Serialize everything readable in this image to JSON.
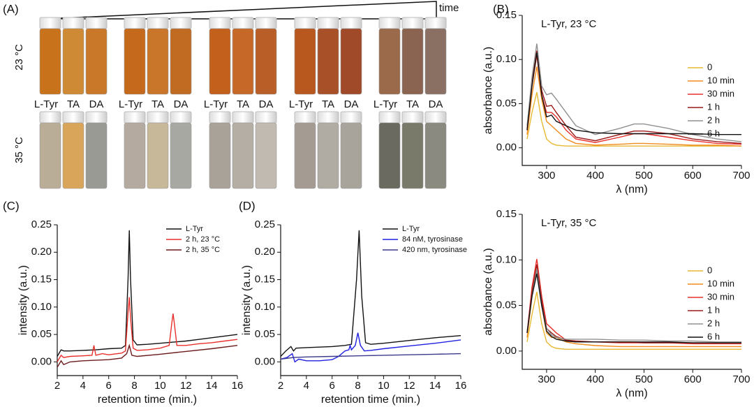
{
  "panels": [
    "(A)",
    "(B)",
    "(C)",
    "(D)"
  ],
  "photo": {
    "time_label": "time",
    "rows": [
      "23 °C",
      "35 °C"
    ],
    "vial_labels": [
      "L-Tyr",
      "TA",
      "DA"
    ]
  },
  "chart_data": [
    {
      "type": "line",
      "title": "L-Tyr, 23 °C",
      "x_label": "λ (nm)",
      "y_label": "absorbance (a.u.)",
      "xlim": [
        250,
        700
      ],
      "ylim": [
        -0.02,
        0.15
      ],
      "xticks": [
        300,
        400,
        500,
        600,
        700
      ],
      "yticks": [
        {
          "value": 0,
          "label": "0.00"
        },
        {
          "value": 0.05,
          "label": "0.05"
        },
        {
          "value": 0.1,
          "label": "0.10"
        },
        {
          "value": 0.15,
          "label": "0.15"
        }
      ],
      "legend": "upper right",
      "series": [
        {
          "name": "0",
          "color": "#e8b830",
          "x": [
            260,
            270,
            280,
            290,
            300,
            310,
            320,
            340,
            360,
            400,
            450,
            480,
            500,
            550,
            600,
            650,
            700
          ],
          "values": [
            0.01,
            0.04,
            0.063,
            0.03,
            0.01,
            0.005,
            0.003,
            0.002,
            0.002,
            0.002,
            0.002,
            0.002,
            0.002,
            0.002,
            0.002,
            0.002,
            0.002
          ]
        },
        {
          "name": "10 min",
          "color": "#f08a1c",
          "x": [
            260,
            270,
            280,
            290,
            300,
            310,
            320,
            340,
            360,
            400,
            450,
            480,
            500,
            550,
            600,
            650,
            700
          ],
          "values": [
            0.015,
            0.06,
            0.092,
            0.055,
            0.03,
            0.025,
            0.02,
            0.01,
            0.005,
            0.003,
            0.004,
            0.005,
            0.005,
            0.004,
            0.003,
            0.003,
            0.002
          ]
        },
        {
          "name": "30 min",
          "color": "#e8302c",
          "x": [
            260,
            270,
            280,
            290,
            300,
            310,
            320,
            340,
            360,
            400,
            450,
            480,
            500,
            550,
            600,
            650,
            700
          ],
          "values": [
            0.02,
            0.07,
            0.105,
            0.06,
            0.04,
            0.04,
            0.035,
            0.02,
            0.01,
            0.006,
            0.012,
            0.016,
            0.016,
            0.012,
            0.008,
            0.005,
            0.004
          ]
        },
        {
          "name": "1 h",
          "color": "#9b1a1a",
          "x": [
            260,
            270,
            280,
            290,
            300,
            310,
            320,
            340,
            360,
            400,
            450,
            480,
            500,
            550,
            600,
            650,
            700
          ],
          "values": [
            0.02,
            0.075,
            0.11,
            0.065,
            0.047,
            0.048,
            0.04,
            0.025,
            0.012,
            0.008,
            0.015,
            0.019,
            0.019,
            0.016,
            0.01,
            0.007,
            0.005
          ]
        },
        {
          "name": "2 h",
          "color": "#909090",
          "x": [
            260,
            270,
            280,
            290,
            300,
            310,
            320,
            340,
            360,
            400,
            450,
            480,
            500,
            550,
            600,
            650,
            700
          ],
          "values": [
            0.025,
            0.08,
            0.118,
            0.07,
            0.06,
            0.062,
            0.055,
            0.04,
            0.025,
            0.015,
            0.022,
            0.027,
            0.027,
            0.022,
            0.015,
            0.01,
            0.007
          ]
        },
        {
          "name": "6 h",
          "color": "#111111",
          "x": [
            260,
            270,
            280,
            290,
            300,
            310,
            320,
            340,
            360,
            400,
            450,
            480,
            500,
            550,
            600,
            650,
            700
          ],
          "values": [
            0.02,
            0.07,
            0.108,
            0.06,
            0.035,
            0.037,
            0.03,
            0.025,
            0.02,
            0.017,
            0.016,
            0.016,
            0.016,
            0.016,
            0.016,
            0.015,
            0.015
          ]
        }
      ]
    },
    {
      "type": "line",
      "title": "L-Tyr, 35 °C",
      "x_label": "λ (nm)",
      "y_label": "absorbance (a.u.)",
      "xlim": [
        250,
        700
      ],
      "ylim": [
        -0.02,
        0.15
      ],
      "xticks": [
        300,
        400,
        500,
        600,
        700
      ],
      "yticks": [
        {
          "value": 0,
          "label": "0.00"
        },
        {
          "value": 0.05,
          "label": "0.05"
        },
        {
          "value": 0.1,
          "label": "0.10"
        },
        {
          "value": 0.15,
          "label": "0.15"
        }
      ],
      "legend": "upper right",
      "series": [
        {
          "name": "0",
          "color": "#e8b830",
          "x": [
            260,
            270,
            280,
            290,
            300,
            310,
            320,
            340,
            360,
            400,
            450,
            480,
            500,
            550,
            600,
            650,
            700
          ],
          "values": [
            0.01,
            0.04,
            0.065,
            0.03,
            0.01,
            0.005,
            0.003,
            0.002,
            0.002,
            0.002,
            0.002,
            0.002,
            0.002,
            0.002,
            0.002,
            0.002,
            0.002
          ]
        },
        {
          "name": "10 min",
          "color": "#f08a1c",
          "x": [
            260,
            270,
            280,
            290,
            300,
            310,
            320,
            340,
            360,
            400,
            450,
            480,
            500,
            550,
            600,
            650,
            700
          ],
          "values": [
            0.015,
            0.06,
            0.09,
            0.05,
            0.02,
            0.015,
            0.015,
            0.01,
            0.008,
            0.006,
            0.005,
            0.005,
            0.005,
            0.005,
            0.005,
            0.005,
            0.005
          ]
        },
        {
          "name": "30 min",
          "color": "#e8302c",
          "x": [
            260,
            270,
            280,
            290,
            300,
            310,
            320,
            340,
            360,
            400,
            450,
            480,
            500,
            550,
            600,
            650,
            700
          ],
          "values": [
            0.02,
            0.07,
            0.101,
            0.06,
            0.03,
            0.025,
            0.02,
            0.012,
            0.01,
            0.01,
            0.009,
            0.009,
            0.009,
            0.009,
            0.008,
            0.008,
            0.008
          ]
        },
        {
          "name": "1 h",
          "color": "#9b1a1a",
          "x": [
            260,
            270,
            280,
            290,
            300,
            310,
            320,
            340,
            360,
            400,
            450,
            480,
            500,
            550,
            600,
            650,
            700
          ],
          "values": [
            0.02,
            0.065,
            0.095,
            0.055,
            0.025,
            0.02,
            0.016,
            0.012,
            0.011,
            0.01,
            0.01,
            0.01,
            0.009,
            0.009,
            0.009,
            0.009,
            0.009
          ]
        },
        {
          "name": "2 h",
          "color": "#909090",
          "x": [
            260,
            270,
            280,
            290,
            300,
            310,
            320,
            340,
            360,
            400,
            450,
            480,
            500,
            550,
            600,
            650,
            700
          ],
          "values": [
            0.02,
            0.06,
            0.09,
            0.05,
            0.025,
            0.018,
            0.015,
            0.013,
            0.013,
            0.013,
            0.012,
            0.012,
            0.012,
            0.011,
            0.011,
            0.01,
            0.01
          ]
        },
        {
          "name": "6 h",
          "color": "#111111",
          "x": [
            260,
            270,
            280,
            290,
            300,
            310,
            320,
            340,
            360,
            400,
            450,
            480,
            500,
            550,
            600,
            650,
            700
          ],
          "values": [
            0.02,
            0.06,
            0.085,
            0.05,
            0.022,
            0.016,
            0.013,
            0.011,
            0.01,
            0.01,
            0.01,
            0.01,
            0.01,
            0.01,
            0.009,
            0.009,
            0.009
          ]
        }
      ]
    },
    {
      "type": "line",
      "x_label": "retention time (min.)",
      "y_label": "intensity (a.u.)",
      "xlim": [
        2,
        16
      ],
      "ylim": [
        -0.025,
        0.25
      ],
      "xticks": [
        2,
        4,
        6,
        8,
        10,
        12,
        14,
        16
      ],
      "yticks": [
        {
          "value": 0,
          "label": "0.00"
        },
        {
          "value": 0.05,
          "label": "0.05"
        },
        {
          "value": 0.1,
          "label": "0.10"
        },
        {
          "value": 0.15,
          "label": "0.15"
        },
        {
          "value": 0.2,
          "label": "0.20"
        },
        {
          "value": 0.25,
          "label": "0.25"
        }
      ],
      "legend": "upper right",
      "series": [
        {
          "name": "L-Tyr",
          "color": "#111111",
          "x": [
            2,
            2.3,
            2.5,
            3,
            4,
            5,
            6,
            7,
            7.3,
            7.5,
            7.6,
            7.7,
            7.9,
            8.2,
            9,
            10,
            11,
            12,
            13,
            14,
            15,
            16
          ],
          "values": [
            0.01,
            0.022,
            0.02,
            0.02,
            0.021,
            0.022,
            0.024,
            0.025,
            0.03,
            0.15,
            0.24,
            0.15,
            0.04,
            0.031,
            0.032,
            0.034,
            0.036,
            0.038,
            0.041,
            0.044,
            0.047,
            0.05
          ]
        },
        {
          "name": "2 h, 23 °C",
          "color": "#e8302c",
          "x": [
            2,
            2.3,
            2.5,
            3,
            4,
            4.7,
            4.85,
            5,
            5.5,
            6,
            7,
            7.3,
            7.5,
            7.6,
            7.7,
            7.9,
            8.2,
            9,
            10,
            10.7,
            10.9,
            11,
            11.1,
            11.3,
            12,
            13,
            14,
            15,
            16
          ],
          "values": [
            0,
            0.012,
            0.008,
            0.01,
            0.011,
            0.012,
            0.03,
            0.012,
            0.015,
            0.013,
            0.016,
            0.02,
            0.09,
            0.118,
            0.08,
            0.025,
            0.021,
            0.022,
            0.025,
            0.03,
            0.07,
            0.088,
            0.07,
            0.03,
            0.03,
            0.033,
            0.035,
            0.038,
            0.041
          ]
        },
        {
          "name": "2 h, 35 °C",
          "color": "#6b1a1a",
          "x": [
            2,
            2.3,
            2.5,
            3,
            4,
            6,
            7,
            7.4,
            7.6,
            7.8,
            8.2,
            10,
            12,
            14,
            16
          ],
          "values": [
            -0.01,
            0.002,
            -0.005,
            0,
            0.002,
            0.004,
            0.007,
            0.015,
            0.03,
            0.012,
            0.01,
            0.014,
            0.019,
            0.024,
            0.03
          ]
        }
      ]
    },
    {
      "type": "line",
      "x_label": "retention time (min.)",
      "y_label": "intensity (a.u.)",
      "xlim": [
        2,
        16
      ],
      "ylim": [
        -0.025,
        0.25
      ],
      "xticks": [
        2,
        4,
        6,
        8,
        10,
        12,
        14,
        16
      ],
      "yticks": [
        {
          "value": 0,
          "label": "0.00"
        },
        {
          "value": 0.05,
          "label": "0.05"
        },
        {
          "value": 0.1,
          "label": "0.10"
        },
        {
          "value": 0.15,
          "label": "0.15"
        },
        {
          "value": 0.2,
          "label": "0.20"
        },
        {
          "value": 0.25,
          "label": "0.25"
        }
      ],
      "legend": "upper right",
      "series": [
        {
          "name": "L-Tyr",
          "color": "#111111",
          "x": [
            2,
            2.4,
            2.8,
            3,
            3.2,
            4,
            5,
            6,
            7,
            7.5,
            7.9,
            8.1,
            8.3,
            8.6,
            9,
            10,
            12,
            14,
            16
          ],
          "values": [
            0.01,
            0.02,
            0.028,
            0.02,
            0.025,
            0.026,
            0.027,
            0.028,
            0.03,
            0.032,
            0.15,
            0.24,
            0.12,
            0.035,
            0.032,
            0.034,
            0.039,
            0.044,
            0.048
          ]
        },
        {
          "name": "84 nM, tyrosinase",
          "color": "#2020e0",
          "x": [
            2,
            2.5,
            2.9,
            3.1,
            3.4,
            4,
            5,
            6,
            6.5,
            7,
            7.3,
            7.4,
            7.5,
            7.8,
            8,
            8.2,
            8.5,
            9,
            10,
            12,
            14,
            16
          ],
          "values": [
            0.005,
            0.008,
            0.015,
            0,
            0.005,
            0.002,
            0.002,
            0.004,
            0.01,
            0.02,
            0.022,
            0.03,
            0.022,
            0.03,
            0.053,
            0.03,
            0.02,
            0.021,
            0.024,
            0.029,
            0.034,
            0.04
          ]
        },
        {
          "name": "420 nm, tyrosinase",
          "color": "#3a3a8a",
          "x": [
            2,
            3,
            4,
            6,
            8,
            10,
            12,
            14,
            16
          ],
          "values": [
            0.005,
            0.008,
            0.009,
            0.01,
            0.011,
            0.012,
            0.013,
            0.014,
            0.015
          ]
        }
      ]
    }
  ]
}
